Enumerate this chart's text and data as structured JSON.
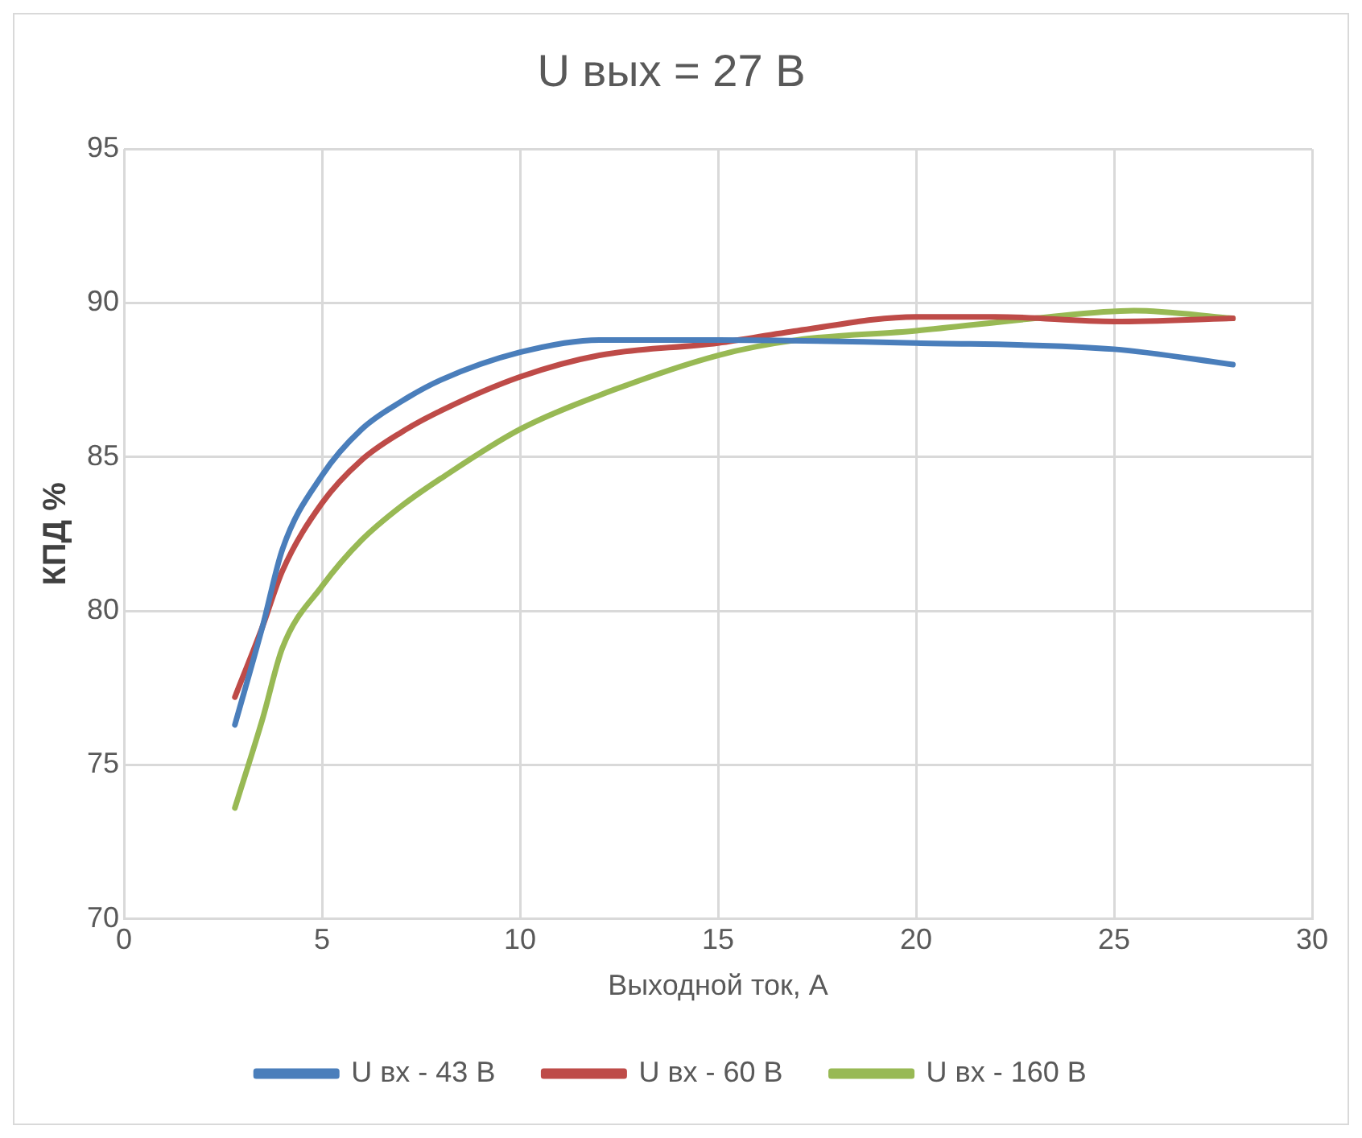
{
  "chart_data": {
    "type": "line",
    "title": "U вых = 27 В",
    "xlabel": "Выходной ток, А",
    "ylabel": "КПД %",
    "xlim": [
      0,
      30
    ],
    "xticks": [
      0,
      5,
      10,
      15,
      20,
      25,
      30
    ],
    "ylim": [
      70,
      95
    ],
    "yticks": [
      70,
      75,
      80,
      85,
      90,
      95
    ],
    "grid": true,
    "legend": "bottom",
    "marker": "none",
    "line_style": "solid",
    "series": [
      {
        "name": "U вх - 43 В",
        "color": "#4a7ebb",
        "x": [
          2.8,
          3.5,
          4,
          5,
          6,
          7,
          8,
          10,
          12,
          15,
          20,
          25,
          28
        ],
        "values": [
          76.3,
          79.5,
          82,
          84.4,
          85.9,
          86.8,
          87.5,
          88.4,
          88.8,
          88.8,
          88.7,
          88.5,
          88.0
        ]
      },
      {
        "name": "U вх - 60 В",
        "color": "#be4b48",
        "x": [
          2.8,
          3.5,
          4,
          5,
          6,
          7,
          8,
          10,
          12,
          15,
          17,
          20,
          22,
          25,
          28
        ],
        "values": [
          77.2,
          79.5,
          81.3,
          83.5,
          84.9,
          85.8,
          86.5,
          87.6,
          88.3,
          88.7,
          89.1,
          89.55,
          89.55,
          89.4,
          89.5
        ]
      },
      {
        "name": "U вх - 160 В",
        "color": "#98b954",
        "x": [
          2.8,
          3.5,
          4,
          5,
          6,
          7,
          8,
          10,
          12,
          15,
          17,
          20,
          23,
          25.5,
          28
        ],
        "values": [
          73.6,
          76.5,
          78.8,
          80.8,
          82.3,
          83.4,
          84.3,
          85.9,
          87.0,
          88.3,
          88.8,
          89.1,
          89.5,
          89.75,
          89.5
        ]
      }
    ]
  }
}
